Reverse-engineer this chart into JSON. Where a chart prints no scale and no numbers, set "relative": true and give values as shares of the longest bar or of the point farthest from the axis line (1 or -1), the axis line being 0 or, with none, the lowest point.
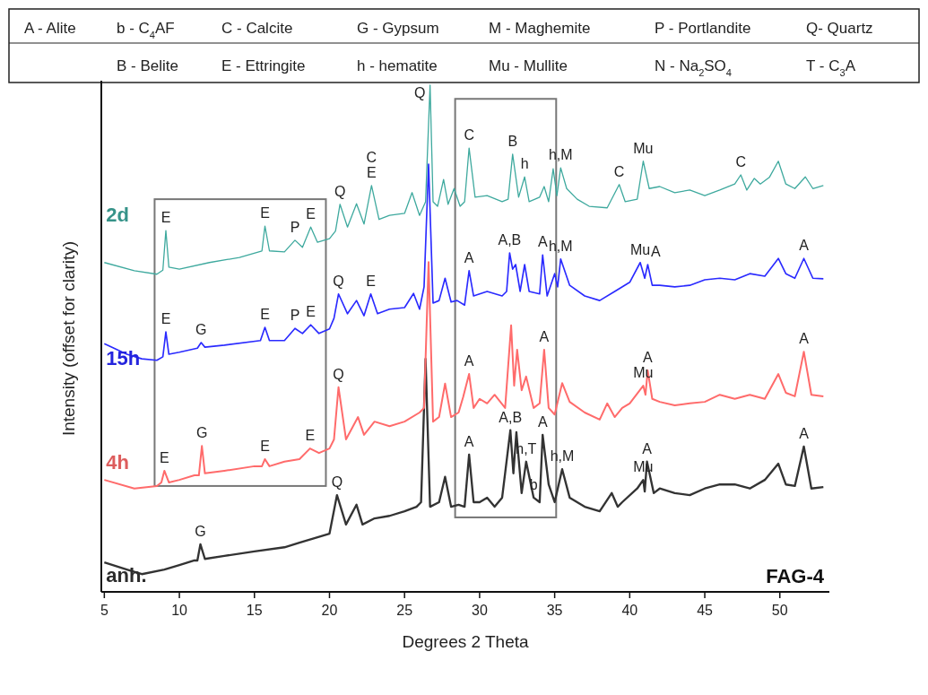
{
  "chart_data": {
    "type": "line",
    "relative": true,
    "xlabel": "Degrees 2 Theta",
    "ylabel": "Intensity (offset for clarity)",
    "xlim": [
      4.8,
      53.3
    ],
    "xticks": [
      5,
      10,
      15,
      20,
      25,
      30,
      35,
      40,
      45,
      50
    ],
    "series": [
      {
        "name": "anh.",
        "color": "#333333",
        "x": [
          5,
          6.5,
          7.5,
          9,
          10,
          11,
          11.2,
          11.4,
          11.7,
          13,
          15,
          17,
          18,
          19,
          20,
          20.5,
          21.1,
          21.8,
          22.2,
          23,
          24,
          25,
          25.8,
          26.1,
          26.4,
          26.7,
          27.3,
          27.7,
          28.1,
          28.6,
          29.0,
          29.3,
          29.6,
          30,
          30.5,
          31,
          31.5,
          32.05,
          32.25,
          32.45,
          32.8,
          33.1,
          33.6,
          34,
          34.2,
          34.6,
          35,
          35.5,
          36,
          37,
          38,
          38.8,
          39.2,
          39.5,
          40.5,
          40.9,
          41.0,
          41.15,
          41.6,
          42,
          43,
          44,
          45,
          46,
          47,
          48,
          49,
          49.9,
          50.4,
          51,
          51.6,
          52.1,
          52.9
        ],
        "values": [
          0.058,
          0.044,
          0.035,
          0.044,
          0.053,
          0.062,
          0.062,
          0.094,
          0.065,
          0.071,
          0.08,
          0.088,
          0.097,
          0.106,
          0.115,
          0.191,
          0.133,
          0.172,
          0.133,
          0.145,
          0.15,
          0.159,
          0.168,
          0.177,
          0.46,
          0.168,
          0.177,
          0.227,
          0.168,
          0.172,
          0.168,
          0.271,
          0.177,
          0.177,
          0.186,
          0.168,
          0.186,
          0.319,
          0.234,
          0.315,
          0.195,
          0.257,
          0.186,
          0.177,
          0.31,
          0.212,
          0.177,
          0.242,
          0.186,
          0.168,
          0.159,
          0.195,
          0.168,
          0.177,
          0.204,
          0.221,
          0.198,
          0.257,
          0.195,
          0.204,
          0.195,
          0.191,
          0.204,
          0.212,
          0.212,
          0.204,
          0.221,
          0.253,
          0.212,
          0.209,
          0.287,
          0.204,
          0.207
        ]
      },
      {
        "name": "4h",
        "color": "#ff6b6b",
        "x": [
          5,
          7,
          8.5,
          8.8,
          9.0,
          9.3,
          10,
          11,
          11.3,
          11.5,
          11.7,
          13,
          15,
          15.5,
          15.7,
          16,
          17,
          18,
          18.7,
          19.3,
          20,
          20.3,
          20.6,
          21.1,
          21.9,
          22.3,
          23,
          24,
          25,
          26,
          26.3,
          26.6,
          26.9,
          27.3,
          27.7,
          28.1,
          28.6,
          28.9,
          29.3,
          29.6,
          30,
          30.5,
          31,
          31.7,
          32.1,
          32.3,
          32.5,
          32.8,
          33.1,
          33.6,
          34,
          34.3,
          34.6,
          35,
          35.5,
          36,
          37,
          38,
          38.5,
          39,
          39.5,
          40,
          40.9,
          41.05,
          41.2,
          41.5,
          42,
          43,
          44,
          45,
          46,
          47,
          48,
          49,
          49.9,
          50.4,
          51,
          51.6,
          52.1,
          52.9
        ],
        "values": [
          0.221,
          0.204,
          0.209,
          0.216,
          0.239,
          0.216,
          0.221,
          0.23,
          0.23,
          0.288,
          0.234,
          0.239,
          0.248,
          0.248,
          0.262,
          0.248,
          0.257,
          0.262,
          0.283,
          0.274,
          0.283,
          0.301,
          0.404,
          0.301,
          0.345,
          0.31,
          0.336,
          0.327,
          0.336,
          0.354,
          0.363,
          0.651,
          0.336,
          0.345,
          0.411,
          0.345,
          0.354,
          0.384,
          0.43,
          0.363,
          0.381,
          0.372,
          0.389,
          0.363,
          0.526,
          0.407,
          0.478,
          0.398,
          0.425,
          0.363,
          0.372,
          0.478,
          0.363,
          0.35,
          0.412,
          0.375,
          0.354,
          0.34,
          0.372,
          0.345,
          0.363,
          0.372,
          0.407,
          0.389,
          0.437,
          0.381,
          0.375,
          0.368,
          0.372,
          0.375,
          0.389,
          0.381,
          0.389,
          0.381,
          0.43,
          0.393,
          0.386,
          0.474,
          0.389,
          0.386
        ]
      },
      {
        "name": "15h",
        "color": "#2a2aff",
        "x": [
          5,
          6.5,
          7.5,
          8.5,
          8.9,
          9.1,
          9.3,
          10,
          11.2,
          11.45,
          11.7,
          13,
          15.4,
          15.7,
          16,
          17,
          17.7,
          18.2,
          18.75,
          19.3,
          20,
          20.3,
          20.6,
          21.2,
          21.8,
          22.3,
          22.75,
          23.2,
          24,
          25,
          25.6,
          26,
          26.3,
          26.6,
          26.9,
          27.3,
          27.7,
          28.1,
          28.5,
          29,
          29.3,
          29.6,
          30.5,
          31.5,
          31.8,
          32.0,
          32.2,
          32.4,
          32.7,
          33.0,
          33.3,
          34,
          34.2,
          34.5,
          35,
          35.2,
          35.4,
          36,
          37,
          38,
          39,
          40,
          40.7,
          41.0,
          41.2,
          41.5,
          42,
          43,
          44,
          45,
          46,
          47,
          48,
          49,
          49.9,
          50.4,
          51,
          51.6,
          52.2,
          52.9
        ],
        "values": [
          0.49,
          0.469,
          0.46,
          0.457,
          0.464,
          0.513,
          0.469,
          0.473,
          0.481,
          0.492,
          0.483,
          0.487,
          0.496,
          0.522,
          0.496,
          0.496,
          0.52,
          0.51,
          0.527,
          0.51,
          0.519,
          0.54,
          0.588,
          0.549,
          0.575,
          0.545,
          0.588,
          0.549,
          0.558,
          0.561,
          0.589,
          0.558,
          0.602,
          0.844,
          0.57,
          0.575,
          0.619,
          0.572,
          0.575,
          0.566,
          0.634,
          0.584,
          0.593,
          0.584,
          0.593,
          0.669,
          0.637,
          0.646,
          0.593,
          0.646,
          0.593,
          0.588,
          0.665,
          0.584,
          0.628,
          0.602,
          0.657,
          0.605,
          0.584,
          0.575,
          0.593,
          0.611,
          0.65,
          0.619,
          0.646,
          0.605,
          0.605,
          0.602,
          0.605,
          0.616,
          0.619,
          0.616,
          0.628,
          0.623,
          0.658,
          0.628,
          0.619,
          0.658,
          0.619,
          0.618
        ]
      },
      {
        "name": "2d",
        "color": "#3ea99e",
        "x": [
          5,
          7,
          8.5,
          8.9,
          9.1,
          9.3,
          10,
          12,
          14,
          15.5,
          15.7,
          16,
          17,
          17.7,
          18.2,
          18.75,
          19.2,
          20,
          20.4,
          20.7,
          21.2,
          21.8,
          22.3,
          22.8,
          23.3,
          24,
          25,
          25.5,
          26,
          26.4,
          26.7,
          26.9,
          27.2,
          27.6,
          27.9,
          28.3,
          28.7,
          29,
          29.3,
          29.7,
          30.5,
          31.5,
          31.9,
          32.2,
          32.6,
          33,
          33.3,
          34,
          34.3,
          34.6,
          34.9,
          35.15,
          35.4,
          35.8,
          36.5,
          37.3,
          38.5,
          39.3,
          39.7,
          40.5,
          40.9,
          41.3,
          42,
          43,
          44,
          45,
          46,
          47,
          47.4,
          47.8,
          48.3,
          48.7,
          49.3,
          49.9,
          50.4,
          51,
          51.7,
          52.2,
          52.9
        ],
        "values": [
          0.65,
          0.634,
          0.627,
          0.635,
          0.713,
          0.641,
          0.637,
          0.65,
          0.66,
          0.673,
          0.722,
          0.673,
          0.671,
          0.694,
          0.68,
          0.72,
          0.69,
          0.697,
          0.712,
          0.765,
          0.72,
          0.766,
          0.726,
          0.802,
          0.735,
          0.743,
          0.747,
          0.788,
          0.743,
          0.77,
          1.0,
          0.77,
          0.761,
          0.814,
          0.765,
          0.796,
          0.761,
          0.77,
          0.876,
          0.779,
          0.782,
          0.77,
          0.775,
          0.864,
          0.779,
          0.819,
          0.77,
          0.779,
          0.8,
          0.77,
          0.835,
          0.782,
          0.837,
          0.796,
          0.775,
          0.761,
          0.758,
          0.804,
          0.77,
          0.775,
          0.85,
          0.796,
          0.8,
          0.788,
          0.793,
          0.782,
          0.793,
          0.805,
          0.823,
          0.793,
          0.816,
          0.805,
          0.818,
          0.85,
          0.805,
          0.796,
          0.819,
          0.796,
          0.802
        ]
      }
    ],
    "annotations": [
      "A - Alite",
      "b - C$_{4}$AF",
      "C - Calcite",
      "G - Gypsum",
      "M - Maghemite",
      "P - Portlandite",
      "Q- Quartz",
      "B - Belite",
      "E - Ettringite",
      "h - hematite",
      "Mu - Mullite",
      "N - Na$_{2}$SO$_{4}$",
      "T - C$_{3}$A",
      "FAG-4",
      {
        "text": "E",
        "x": 9.1,
        "y": 0.713
      },
      {
        "text": "E",
        "x": 15.7,
        "y": 0.722
      },
      {
        "text": "P",
        "x": 17.7,
        "y": 0.694
      },
      {
        "text": "E",
        "x": 18.75,
        "y": 0.72
      },
      {
        "text": "Q",
        "x": 20.7,
        "y": 0.765
      },
      {
        "text": "E",
        "x": 22.8,
        "y": 0.802
      },
      {
        "text": "C",
        "x": 22.8,
        "y": 0.802
      },
      {
        "text": "Q",
        "x": 26.7,
        "y": 1.0
      },
      {
        "text": "C",
        "x": 29.3,
        "y": 0.876
      },
      {
        "text": "B",
        "x": 32.2,
        "y": 0.864
      },
      {
        "text": "h",
        "x": 33,
        "y": 0.819
      },
      {
        "text": "h,M",
        "x": 35.4,
        "y": 0.837
      },
      {
        "text": "C",
        "x": 39.3,
        "y": 0.804
      },
      {
        "text": "Mu",
        "x": 40.9,
        "y": 0.85
      },
      {
        "text": "C",
        "x": 47.4,
        "y": 0.823
      },
      {
        "text": "E",
        "x": 9.1,
        "y": 0.513
      },
      {
        "text": "G",
        "x": 11.45,
        "y": 0.492
      },
      {
        "text": "E",
        "x": 15.7,
        "y": 0.522
      },
      {
        "text": "P",
        "x": 17.7,
        "y": 0.52
      },
      {
        "text": "E",
        "x": 18.75,
        "y": 0.527
      },
      {
        "text": "Q",
        "x": 20.6,
        "y": 0.588
      },
      {
        "text": "E",
        "x": 22.75,
        "y": 0.588
      },
      {
        "text": "A",
        "x": 29.3,
        "y": 0.634
      },
      {
        "text": "A,B",
        "x": 32.0,
        "y": 0.669
      },
      {
        "text": "A",
        "x": 34.2,
        "y": 0.665
      },
      {
        "text": "h,M",
        "x": 35.4,
        "y": 0.657
      },
      {
        "text": "Mu",
        "x": 40.7,
        "y": 0.65
      },
      {
        "text": "A",
        "x": 41.2,
        "y": 0.646
      },
      {
        "text": "A",
        "x": 51.6,
        "y": 0.658
      },
      {
        "text": "E",
        "x": 9.0,
        "y": 0.239
      },
      {
        "text": "G",
        "x": 11.5,
        "y": 0.288
      },
      {
        "text": "E",
        "x": 15.7,
        "y": 0.262
      },
      {
        "text": "E",
        "x": 18.7,
        "y": 0.283
      },
      {
        "text": "Q",
        "x": 20.6,
        "y": 0.404
      },
      {
        "text": "A",
        "x": 29.3,
        "y": 0.43
      },
      {
        "text": "A",
        "x": 34.3,
        "y": 0.478
      },
      {
        "text": "Mu",
        "x": 40.9,
        "y": 0.407
      },
      {
        "text": "A",
        "x": 41.2,
        "y": 0.437
      },
      {
        "text": "A",
        "x": 51.6,
        "y": 0.474
      },
      {
        "text": "G",
        "x": 11.4,
        "y": 0.094
      },
      {
        "text": "Q",
        "x": 20.5,
        "y": 0.191
      },
      {
        "text": "A",
        "x": 29.3,
        "y": 0.271
      },
      {
        "text": "A,B",
        "x": 32.05,
        "y": 0.319
      },
      {
        "text": "h,M",
        "x": 35.5,
        "y": 0.242
      },
      {
        "text": "Mu",
        "x": 40.9,
        "y": 0.221
      },
      {
        "text": "A",
        "x": 41.15,
        "y": 0.257
      },
      {
        "text": "A",
        "x": 51.6,
        "y": 0.287
      },
      {
        "text": "h,T",
        "x": 33.1,
        "y": 0.257
      },
      {
        "text": "b",
        "x": 33.6,
        "y": 0.186
      },
      {
        "text": "A",
        "x": 34.2,
        "y": 0.31
      }
    ]
  }
}
